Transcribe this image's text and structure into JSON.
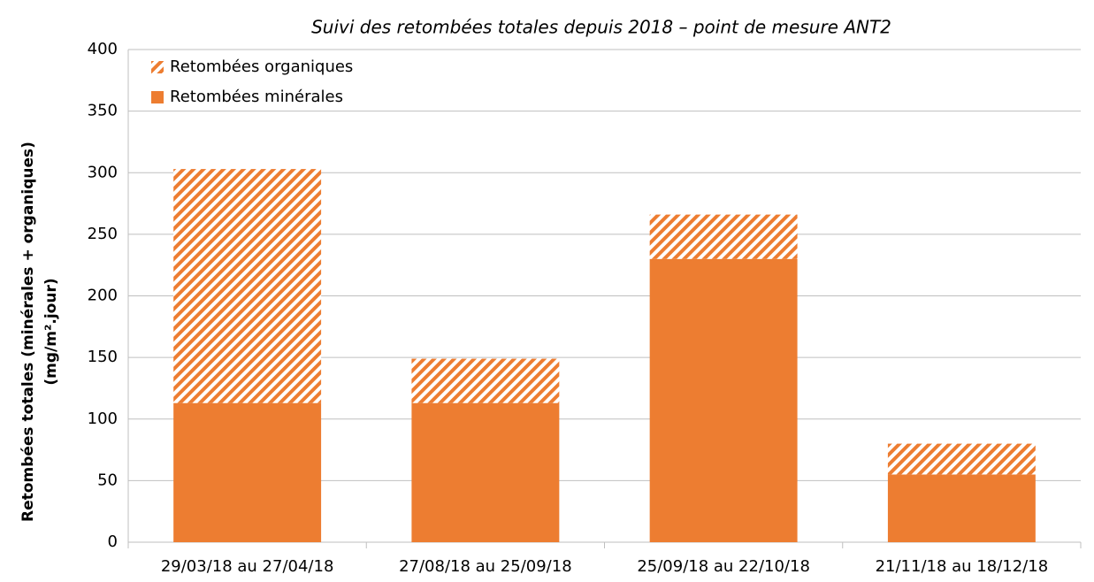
{
  "chart_data": {
    "type": "stacked_bar",
    "title": "Suivi des retombées totales depuis 2018 – point de mesure ANT2",
    "ylabel": [
      "Retombées totales (minérales + organiques)",
      "(mg/m².jour)"
    ],
    "categories": [
      "29/03/18 au 27/04/18",
      "27/08/18 au 25/09/18",
      "25/09/18 au 22/10/18",
      "21/11/18 au 18/12/18"
    ],
    "series": [
      {
        "name": "Retombées minérales",
        "color": "#ed7d31",
        "pattern": "solid",
        "values": [
          113,
          113,
          230,
          55
        ]
      },
      {
        "name": "Retombées organiques",
        "color": "#ed7d31",
        "pattern": "hatch",
        "values": [
          190,
          36,
          36,
          25
        ]
      }
    ],
    "ylim": [
      0,
      400
    ],
    "yticks": [
      0,
      50,
      100,
      150,
      200,
      250,
      300,
      350,
      400
    ],
    "grid": true,
    "legend": "top-left"
  }
}
